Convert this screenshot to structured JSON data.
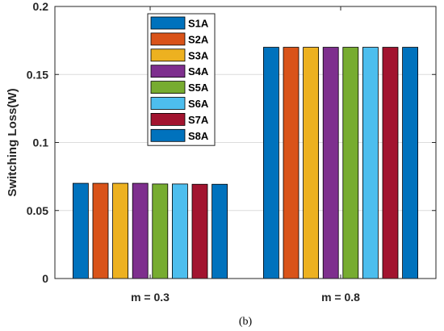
{
  "chart_data": {
    "type": "bar",
    "categories": [
      "m = 0.3",
      "m = 0.8"
    ],
    "series": [
      {
        "name": "S1A",
        "values": [
          0.07,
          0.17
        ],
        "color": "#0072BD"
      },
      {
        "name": "S2A",
        "values": [
          0.07,
          0.17
        ],
        "color": "#D95319"
      },
      {
        "name": "S3A",
        "values": [
          0.07,
          0.17
        ],
        "color": "#EDB120"
      },
      {
        "name": "S4A",
        "values": [
          0.07,
          0.17
        ],
        "color": "#7E2F8E"
      },
      {
        "name": "S5A",
        "values": [
          0.0695,
          0.17
        ],
        "color": "#77AC30"
      },
      {
        "name": "S6A",
        "values": [
          0.0695,
          0.17
        ],
        "color": "#4DBEEE"
      },
      {
        "name": "S7A",
        "values": [
          0.0693,
          0.17
        ],
        "color": "#A2142F"
      },
      {
        "name": "S8A",
        "values": [
          0.0693,
          0.17
        ],
        "color": "#0072BD"
      }
    ],
    "ylabel": "Switching Loss(W)",
    "ylim": [
      0,
      0.2
    ],
    "yticks": [
      0,
      0.05,
      0.1,
      0.15,
      0.2
    ],
    "ytick_labels": [
      "0",
      "0.05",
      "0.1",
      "0.15",
      "0.2"
    ],
    "grid": true,
    "legend_position": "top-center"
  },
  "caption": "(b)"
}
